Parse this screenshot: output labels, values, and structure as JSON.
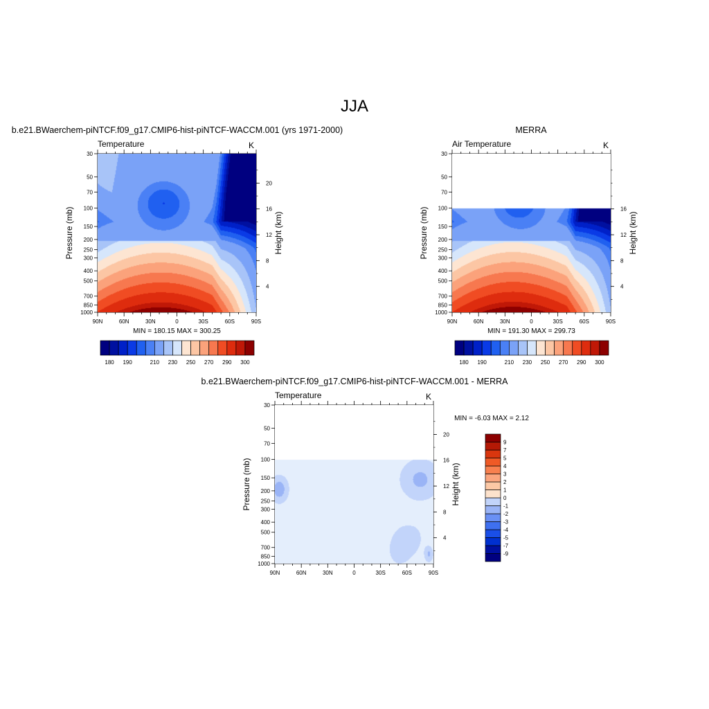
{
  "page": {
    "main_title": "JJA"
  },
  "colors": {
    "model_temperature_levels": [
      "#000080",
      "#0010a0",
      "#0020c8",
      "#0a3ae6",
      "#2060f0",
      "#4a80f5",
      "#7aa2f7",
      "#a8c4f8",
      "#d6e6fb",
      "#fde5d2",
      "#fcc6a4",
      "#fba27b",
      "#f7784f",
      "#f04c23",
      "#de2c0e",
      "#c01807",
      "#8c0000"
    ],
    "difference_levels": [
      "#000080",
      "#0010a0",
      "#0030d0",
      "#1a4fe8",
      "#3f70f0",
      "#6a90f4",
      "#9ab4f6",
      "#c2d4fa",
      "#e4eefc",
      "#fde2cc",
      "#fcc8a5",
      "#fba57e",
      "#f8804f",
      "#ef5a26",
      "#d9360e",
      "#b41905",
      "#8c0000"
    ],
    "missing": "#ffffff"
  },
  "chart_data": [
    {
      "type": "contour",
      "title": "b.e21.BWaerchem-piNTCF.f09_g17.CMIP6-hist-piNTCF-WACCM.001 (yrs 1971-2000)",
      "variable_label": "Temperature",
      "units_label": "K",
      "xlabel": "",
      "ylabel": "Pressure (mb)",
      "y2label": "Height (km)",
      "x_ticks": [
        "90N",
        "60N",
        "30N",
        "0",
        "30S",
        "60S",
        "90S"
      ],
      "x_values": [
        90,
        60,
        30,
        0,
        -30,
        -60,
        -90
      ],
      "y_ticks": [
        "30",
        "50",
        "70",
        "100",
        "150",
        "200",
        "250",
        "300",
        "400",
        "500",
        "700",
        "850",
        "1000"
      ],
      "y_values": [
        30,
        50,
        70,
        100,
        150,
        200,
        250,
        300,
        400,
        500,
        700,
        850,
        1000
      ],
      "y_scale": "log",
      "ylim": [
        30,
        1000
      ],
      "height_ticks": [
        "20",
        "16",
        "12",
        "8",
        "4"
      ],
      "height_values": [
        20,
        16,
        12,
        8,
        4
      ],
      "stat_text": "MIN = 180.15  MAX = 300.25",
      "min": 180.15,
      "max": 300.25,
      "colorbar": {
        "orientation": "horizontal",
        "levels": [
          175,
          180,
          185,
          190,
          195,
          200,
          210,
          220,
          230,
          240,
          250,
          260,
          270,
          280,
          290,
          295,
          300
        ],
        "labels": [
          "180",
          "190",
          "210",
          "230",
          "250",
          "270",
          "290",
          "300"
        ],
        "label_positions": [
          1,
          3,
          6,
          8,
          10,
          12,
          14,
          16
        ]
      },
      "data_ptop": 30
    },
    {
      "type": "contour",
      "title": "MERRA",
      "variable_label": "Air Temperature",
      "units_label": "K",
      "xlabel": "",
      "ylabel": "Pressure (mb)",
      "y2label": "Height (km)",
      "x_ticks": [
        "90N",
        "60N",
        "30N",
        "0",
        "30S",
        "60S",
        "90S"
      ],
      "x_values": [
        90,
        60,
        30,
        0,
        -30,
        -60,
        -90
      ],
      "y_ticks": [
        "30",
        "50",
        "70",
        "100",
        "150",
        "200",
        "250",
        "300",
        "400",
        "500",
        "700",
        "850",
        "1000"
      ],
      "y_values": [
        30,
        50,
        70,
        100,
        150,
        200,
        250,
        300,
        400,
        500,
        700,
        850,
        1000
      ],
      "y_scale": "log",
      "ylim": [
        30,
        1000
      ],
      "height_ticks": [
        "16",
        "12",
        "8",
        "4"
      ],
      "height_values": [
        16,
        12,
        8,
        4
      ],
      "stat_text": "MIN = 191.30  MAX = 299.73",
      "min": 191.3,
      "max": 299.73,
      "colorbar": {
        "orientation": "horizontal",
        "levels": [
          175,
          180,
          185,
          190,
          195,
          200,
          210,
          220,
          230,
          240,
          250,
          260,
          270,
          280,
          290,
          295,
          300
        ],
        "labels": [
          "180",
          "190",
          "210",
          "230",
          "250",
          "270",
          "290",
          "300"
        ],
        "label_positions": [
          1,
          3,
          6,
          8,
          10,
          12,
          14,
          16
        ]
      },
      "data_ptop": 100
    },
    {
      "type": "contour",
      "title": "b.e21.BWaerchem-piNTCF.f09_g17.CMIP6-hist-piNTCF-WACCM.001 - MERRA",
      "variable_label": "Temperature",
      "units_label": "K",
      "xlabel": "",
      "ylabel": "Pressure (mb)",
      "y2label": "Height (km)",
      "x_ticks": [
        "90N",
        "60N",
        "30N",
        "0",
        "30S",
        "60S",
        "90S"
      ],
      "x_values": [
        90,
        60,
        30,
        0,
        -30,
        -60,
        -90
      ],
      "y_ticks": [
        "30",
        "50",
        "70",
        "100",
        "150",
        "200",
        "250",
        "300",
        "400",
        "500",
        "700",
        "850",
        "1000"
      ],
      "y_values": [
        30,
        50,
        70,
        100,
        150,
        200,
        250,
        300,
        400,
        500,
        700,
        850,
        1000
      ],
      "y_scale": "log",
      "ylim": [
        30,
        1000
      ],
      "height_ticks": [
        "20",
        "16",
        "12",
        "8",
        "4"
      ],
      "height_values": [
        20,
        16,
        12,
        8,
        4
      ],
      "stat_text": "MIN =  -6.03  MAX =   2.12",
      "min": -6.03,
      "max": 2.12,
      "colorbar": {
        "orientation": "vertical",
        "levels": [
          -9,
          -7,
          -5,
          -4,
          -3,
          -2,
          -1,
          0,
          1,
          2,
          3,
          4,
          5,
          7,
          9
        ],
        "labels": [
          "-9",
          "-7",
          "-5",
          "-4",
          "-3",
          "-2",
          "-1",
          "0",
          "1",
          "2",
          "3",
          "4",
          "5",
          "7",
          "9"
        ]
      },
      "data_ptop": 100
    }
  ]
}
